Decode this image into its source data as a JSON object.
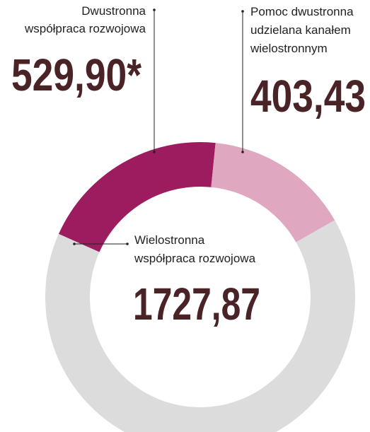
{
  "chart_data": {
    "type": "donut",
    "labels": [
      [
        "Dwustronna",
        "współpraca rozwojowa"
      ],
      [
        "Pomoc dwustronna",
        "udzielana kanałem",
        "wielostronnym"
      ],
      [
        "Wielostronna",
        "współpraca rozwojowa"
      ]
    ],
    "values": [
      529.9,
      403.43,
      1727.87
    ],
    "value_labels": [
      "529,90*",
      "403,43",
      "1727,87"
    ],
    "colors": [
      "#9c1c5f",
      "#dfa8c0",
      "#dcdcdc"
    ]
  }
}
